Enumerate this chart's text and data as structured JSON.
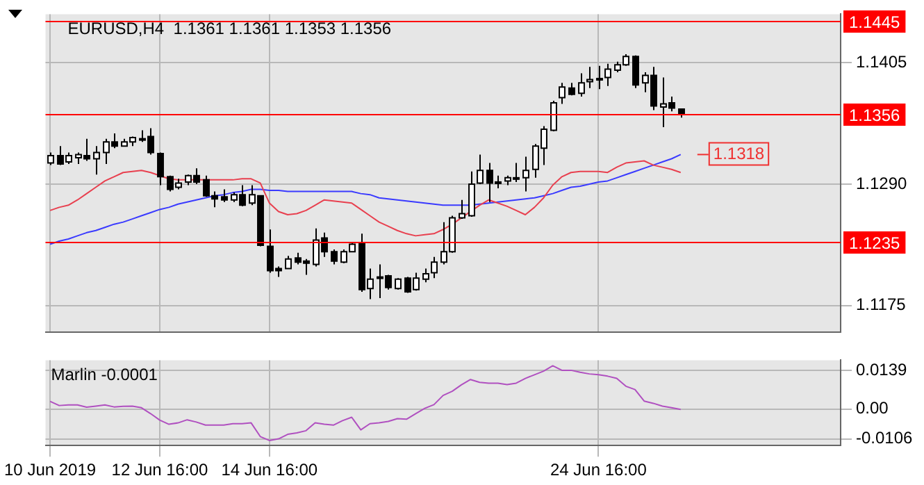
{
  "chart_data": [
    {
      "type": "candlestick",
      "title": "EURUSD,H4  1.1361 1.1361 1.1353 1.1356",
      "categories": [
        null,
        null,
        null,
        null,
        null,
        null,
        null,
        null,
        null,
        null,
        null,
        null,
        null,
        null,
        null,
        null,
        null,
        null,
        null,
        null,
        null,
        null,
        null,
        null,
        null,
        null,
        null,
        null,
        null,
        null,
        null,
        null,
        null,
        null,
        null,
        null,
        null,
        null,
        null,
        null,
        null,
        null,
        null,
        null,
        null,
        null,
        null,
        null,
        null,
        null,
        null,
        null,
        null,
        null,
        null,
        null,
        null,
        null,
        null,
        null,
        null,
        null,
        null,
        null,
        null,
        null,
        null,
        null,
        null,
        null,
        null,
        null,
        null,
        null,
        null,
        null,
        null,
        null,
        null,
        null,
        null,
        null,
        null,
        null,
        null,
        null,
        null
      ],
      "ohlc": [
        [
          1.131,
          1.132,
          1.1308,
          1.1317
        ],
        [
          1.1317,
          1.1326,
          1.1308,
          1.1309
        ],
        [
          1.1311,
          1.132,
          1.1309,
          1.1317
        ],
        [
          1.1315,
          1.132,
          1.1309,
          1.1318
        ],
        [
          1.1317,
          1.1333,
          1.1312,
          1.1314
        ],
        [
          1.1314,
          1.1326,
          1.1299,
          1.132
        ],
        [
          1.132,
          1.1333,
          1.1309,
          1.133
        ],
        [
          1.133,
          1.1338,
          1.1324,
          1.1326
        ],
        [
          1.1326,
          1.1333,
          1.1326,
          1.133
        ],
        [
          1.133,
          1.1335,
          1.1326,
          1.1334
        ],
        [
          1.1333,
          1.1341,
          1.133,
          1.1333
        ],
        [
          1.1335,
          1.1343,
          1.1318,
          1.132
        ],
        [
          1.1319,
          1.132,
          1.1289,
          1.1297
        ],
        [
          1.1297,
          1.1298,
          1.1283,
          1.1285
        ],
        [
          1.1287,
          1.1295,
          1.1285,
          1.1291
        ],
        [
          1.1292,
          1.1299,
          1.1289,
          1.1298
        ],
        [
          1.1298,
          1.1305,
          1.129,
          1.1292
        ],
        [
          1.1294,
          1.1298,
          1.1278,
          1.1279
        ],
        [
          1.1279,
          1.1283,
          1.1268,
          1.1276
        ],
        [
          1.1278,
          1.1285,
          1.1273,
          1.1275
        ],
        [
          1.1275,
          1.1282,
          1.1273,
          1.128
        ],
        [
          1.128,
          1.1289,
          1.1269,
          1.127
        ],
        [
          1.1272,
          1.1289,
          1.127,
          1.128
        ],
        [
          1.1279,
          1.1279,
          1.1231,
          1.1232
        ],
        [
          1.1231,
          1.1247,
          1.1206,
          1.1208
        ],
        [
          1.121,
          1.1212,
          1.1202,
          1.1208
        ],
        [
          1.121,
          1.1222,
          1.121,
          1.1219
        ],
        [
          1.122,
          1.1225,
          1.1214,
          1.1216
        ],
        [
          1.1217,
          1.1219,
          1.1204,
          1.1215
        ],
        [
          1.1214,
          1.1248,
          1.1212,
          1.1237
        ],
        [
          1.1239,
          1.1244,
          1.1221,
          1.1226
        ],
        [
          1.1226,
          1.1228,
          1.1214,
          1.1217
        ],
        [
          1.1216,
          1.1228,
          1.1215,
          1.1226
        ],
        [
          1.1226,
          1.1235,
          1.1226,
          1.1233
        ],
        [
          1.1234,
          1.1243,
          1.1188,
          1.119
        ],
        [
          1.1191,
          1.121,
          1.1181,
          1.12
        ],
        [
          1.1202,
          1.1214,
          1.1182,
          1.1202
        ],
        [
          1.1203,
          1.1204,
          1.119,
          1.1192
        ],
        [
          1.1191,
          1.1201,
          1.119,
          1.12
        ],
        [
          1.1201,
          1.1202,
          1.1187,
          1.1188
        ],
        [
          1.119,
          1.1206,
          1.1189,
          1.1201
        ],
        [
          1.12,
          1.121,
          1.1197,
          1.1205
        ],
        [
          1.1206,
          1.1221,
          1.1201,
          1.1216
        ],
        [
          1.1216,
          1.1254,
          1.1214,
          1.1226
        ],
        [
          1.1226,
          1.126,
          1.1225,
          1.1258
        ],
        [
          1.1258,
          1.1275,
          1.1257,
          1.1262
        ],
        [
          1.126,
          1.1302,
          1.1259,
          1.129
        ],
        [
          1.1291,
          1.1318,
          1.129,
          1.1303
        ],
        [
          1.1303,
          1.131,
          1.1273,
          1.1291
        ],
        [
          1.1292,
          1.1298,
          1.1286,
          1.1292
        ],
        [
          1.1293,
          1.1298,
          1.1289,
          1.1296
        ],
        [
          1.1295,
          1.131,
          1.1292,
          1.1296
        ],
        [
          1.1296,
          1.1316,
          1.1283,
          1.1303
        ],
        [
          1.1304,
          1.1328,
          1.1296,
          1.1326
        ],
        [
          1.1324,
          1.1345,
          1.1308,
          1.1342
        ],
        [
          1.1341,
          1.1369,
          1.134,
          1.1367
        ],
        [
          1.1372,
          1.1386,
          1.1366,
          1.1382
        ],
        [
          1.1381,
          1.1386,
          1.1374,
          1.1375
        ],
        [
          1.1376,
          1.1395,
          1.1373,
          1.1386
        ],
        [
          1.1387,
          1.1401,
          1.1381,
          1.1389
        ],
        [
          1.139,
          1.1402,
          1.138,
          1.1389
        ],
        [
          1.1391,
          1.1404,
          1.1383,
          1.1399
        ],
        [
          1.1398,
          1.1406,
          1.1396,
          1.1403
        ],
        [
          1.1403,
          1.1413,
          1.1402,
          1.1411
        ],
        [
          1.1411,
          1.1412,
          1.1381,
          1.1384
        ],
        [
          1.1386,
          1.1396,
          1.1377,
          1.1393
        ],
        [
          1.1393,
          1.1401,
          1.136,
          1.1364
        ],
        [
          1.1363,
          1.1391,
          1.1344,
          1.1366
        ],
        [
          1.1367,
          1.1373,
          1.1359,
          1.1362
        ],
        [
          1.1361,
          1.1361,
          1.1353,
          1.1356
        ],
        null,
        null,
        null,
        null,
        null,
        null,
        null,
        null,
        null,
        null,
        null,
        null,
        null,
        null,
        null,
        null,
        null
      ],
      "series": [
        {
          "type": "line",
          "color": "#e8404f",
          "values": [
            1.1265,
            1.1268,
            1.127,
            1.1275,
            1.1281,
            1.1287,
            1.1293,
            1.1297,
            1.1301,
            1.1302,
            1.1303,
            1.1301,
            1.1298,
            1.1295,
            1.1294,
            1.1294,
            1.1294,
            1.1294,
            1.1294,
            1.1294,
            1.1294,
            1.1295,
            1.1295,
            1.1291,
            1.1272,
            1.1264,
            1.1261,
            1.1262,
            1.1265,
            1.127,
            1.1275,
            1.1274,
            1.1273,
            1.1272,
            1.1266,
            1.126,
            1.1254,
            1.125,
            1.1246,
            1.1243,
            1.1241,
            1.1242,
            1.1243,
            1.1247,
            1.1252,
            1.1258,
            1.1264,
            1.127,
            1.1275,
            1.1272,
            1.1269,
            1.1265,
            1.1261,
            1.1268,
            1.1277,
            1.1289,
            1.1297,
            1.1301,
            1.1302,
            1.1302,
            1.1302,
            1.1301,
            1.1306,
            1.131,
            1.1311,
            1.1312,
            1.1308,
            1.1306,
            1.1304,
            1.1301,
            null,
            null,
            null,
            null,
            null,
            null,
            null,
            null,
            null,
            null,
            null,
            null,
            null,
            null,
            null,
            null,
            null
          ]
        },
        {
          "type": "line",
          "color": "#3a3aff",
          "values": [
            1.1233,
            1.1236,
            1.1238,
            1.1241,
            1.1244,
            1.1246,
            1.1249,
            1.1252,
            1.1254,
            1.1257,
            1.126,
            1.1263,
            1.1266,
            1.1268,
            1.1271,
            1.1273,
            1.1275,
            1.1277,
            1.1279,
            1.128,
            1.1282,
            1.1283,
            1.1285,
            1.1285,
            1.1284,
            1.1284,
            1.1283,
            1.1283,
            1.1283,
            1.1283,
            1.1283,
            1.1283,
            1.1283,
            1.1283,
            1.1281,
            1.128,
            1.1277,
            1.1276,
            1.1275,
            1.1274,
            1.1273,
            1.1272,
            1.1271,
            1.127,
            1.127,
            1.127,
            1.127,
            1.1271,
            1.1272,
            1.1273,
            1.1274,
            1.1275,
            1.1276,
            1.1277,
            1.1279,
            1.1281,
            1.1284,
            1.1287,
            1.1288,
            1.129,
            1.1292,
            1.1293,
            1.1296,
            1.1299,
            1.1302,
            1.1305,
            1.1308,
            1.1311,
            1.1314,
            1.1318,
            null,
            null,
            null,
            null,
            null,
            null,
            null,
            null,
            null,
            null,
            null,
            null,
            null,
            null,
            null,
            null,
            null
          ]
        }
      ],
      "ylim": [
        1.115,
        1.1451
      ],
      "yticks": [
        1.1405,
        {
          "value": 1.129,
          "label": "1.1290"
        },
        1.1175
      ],
      "ref_lines": [
        {
          "axis": "y",
          "value": 1.1445,
          "label": "1.1445",
          "color": "#ff0000"
        },
        {
          "axis": "y",
          "value": 1.1356,
          "label": "1.1356",
          "color": "#ff0000"
        },
        {
          "axis": "y",
          "value": 1.1235,
          "label": "1.1235",
          "color": "#ff0000"
        }
      ],
      "annotations": [
        {
          "text": "1.1318",
          "y": 1.1318
        }
      ],
      "grid": true,
      "tick_labels": "y",
      "legend": false
    },
    {
      "type": "line",
      "title": "Marlin -0.0001",
      "categories": [
        "10 Jun 2019",
        null,
        null,
        null,
        null,
        null,
        null,
        null,
        null,
        null,
        null,
        null,
        "12 Jun 16:00",
        null,
        null,
        null,
        null,
        null,
        null,
        null,
        null,
        null,
        null,
        null,
        "14 Jun 16:00",
        null,
        null,
        null,
        null,
        null,
        null,
        null,
        null,
        null,
        null,
        null,
        null,
        null,
        null,
        null,
        null,
        null,
        null,
        null,
        null,
        null,
        null,
        null,
        null,
        null,
        null,
        null,
        null,
        null,
        null,
        null,
        null,
        null,
        null,
        null,
        "24 Jun 16:00",
        null,
        null,
        null,
        null,
        null,
        null,
        null,
        null,
        null,
        null,
        null,
        null,
        null,
        null,
        null,
        null,
        null,
        null,
        null,
        null,
        null,
        null,
        null,
        null,
        null,
        null
      ],
      "series": [
        {
          "color": "#b050c0",
          "values": [
            0.0028,
            0.0013,
            0.0015,
            0.0015,
            0.0007,
            0.0011,
            0.0015,
            0.0008,
            0.001,
            0.0011,
            0.0005,
            -0.0016,
            -0.0039,
            -0.0054,
            -0.0049,
            -0.0038,
            -0.0046,
            -0.0057,
            -0.0057,
            -0.0057,
            -0.0052,
            -0.0052,
            -0.0049,
            -0.0098,
            -0.0112,
            -0.0106,
            -0.009,
            -0.0085,
            -0.0077,
            -0.0049,
            -0.0054,
            -0.0057,
            -0.0041,
            -0.0029,
            -0.0074,
            -0.0052,
            -0.0049,
            -0.0044,
            -0.0034,
            -0.0036,
            -0.0016,
            0.0003,
            0.0016,
            0.0049,
            0.0064,
            0.0087,
            0.0106,
            0.0096,
            0.0093,
            0.0093,
            0.0088,
            0.0093,
            0.011,
            0.0123,
            0.0136,
            0.0155,
            0.0139,
            0.0139,
            0.0132,
            0.0126,
            0.0123,
            0.0118,
            0.011,
            0.0082,
            0.007,
            0.0029,
            0.0021,
            0.0011,
            0.0005,
            -0.0001,
            null,
            null,
            null,
            null,
            null,
            null,
            null,
            null,
            null,
            null,
            null,
            null,
            null,
            null,
            null,
            null,
            null
          ]
        }
      ],
      "ylim": [
        -0.013,
        0.0175
      ],
      "yticks": [
        0.0139,
        {
          "value": 0,
          "label": "0.00"
        },
        -0.0106
      ],
      "grid": true,
      "legend": false
    }
  ]
}
